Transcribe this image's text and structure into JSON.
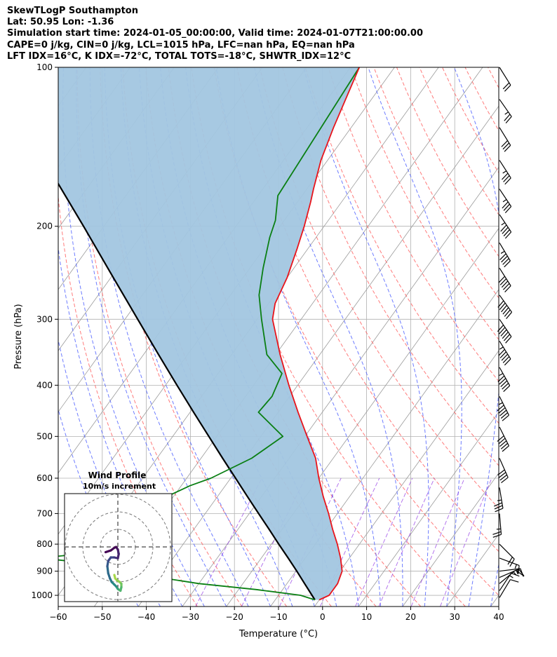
{
  "header": {
    "lines": [
      "SkewTLogP Southampton",
      "Lat: 50.95   Lon: -1.36",
      "Simulation start time: 2024-01-05_00:00:00, Valid time: 2024-01-07T21:00:00.00",
      "CAPE=0 j/kg, CIN=0 j/kg, LCL=1015 hPa, LFC=nan hPa, EQ=nan hPa",
      "LFT IDX=16°C, K IDX=-72°C, TOTAL TOTS=-18°C, SHWTR_IDX=12°C"
    ]
  },
  "colors": {
    "temperature": "#e8141b",
    "dewpoint": "#0a7f13",
    "parcel": "#000000",
    "shade": "#a2c6e0",
    "dry_adiabat": "#ff5a5a",
    "moist_adiabat": "#4a5cff",
    "mixing_ratio": "#8a2be2",
    "isotherm": "#9a9a9a"
  },
  "chart_data": {
    "type": "line",
    "title": "",
    "xlabel": "Temperature (°C)",
    "ylabel": "Pressure (hPa)",
    "xlim": [
      -60,
      40
    ],
    "ylim": [
      1050,
      100
    ],
    "y_scale": "log",
    "skew": "skewT",
    "x_ticks": [
      "−60",
      "−50",
      "−40",
      "−30",
      "−20",
      "−10",
      "0",
      "10",
      "20",
      "30",
      "40"
    ],
    "x_tick_values": [
      -60,
      -50,
      -40,
      -30,
      -20,
      -10,
      0,
      10,
      20,
      30,
      40
    ],
    "y_ticks": [
      "100",
      "200",
      "300",
      "400",
      "500",
      "600",
      "700",
      "800",
      "900",
      "1000"
    ],
    "y_tick_values": [
      100,
      200,
      300,
      400,
      500,
      600,
      700,
      800,
      900,
      1000
    ],
    "grid": true,
    "series": [
      {
        "key": "temperature",
        "pressure": [
          1020,
          1000,
          950,
          900,
          850,
          800,
          750,
          700,
          650,
          600,
          550,
          500,
          450,
          400,
          350,
          300,
          280,
          250,
          220,
          200,
          180,
          170,
          150,
          130,
          100
        ],
        "temp": [
          0.0,
          1.5,
          1.5,
          0.5,
          -2.0,
          -5.0,
          -8.5,
          -12.0,
          -16.0,
          -20.0,
          -24.0,
          -29.5,
          -35.5,
          -42.0,
          -49.0,
          -56.5,
          -58.5,
          -60.0,
          -62.5,
          -64.5,
          -67.0,
          -68.5,
          -71.5,
          -74.0,
          -78.0
        ]
      },
      {
        "key": "dewpoint",
        "pressure": [
          1020,
          1000,
          975,
          950,
          925,
          900,
          875,
          850,
          800,
          750,
          700,
          650,
          620,
          600,
          550,
          500,
          450,
          420,
          380,
          350,
          300,
          270,
          240,
          210,
          195,
          175,
          100
        ],
        "temp": [
          -1.0,
          -5.0,
          -16.0,
          -30.0,
          -40.0,
          -48.0,
          -55.0,
          -70.0,
          -43.0,
          -46.0,
          -49.0,
          -51.5,
          -48.0,
          -44.5,
          -38.5,
          -35.0,
          -44.5,
          -44.0,
          -45.5,
          -52.0,
          -59.0,
          -63.5,
          -67.0,
          -70.5,
          -72.0,
          -75.5,
          -78.0
        ]
      },
      {
        "key": "parcel",
        "pressure": [
          1020,
          950,
          900,
          850,
          800,
          750,
          700,
          650,
          600,
          550,
          500,
          450,
          400,
          350,
          300,
          250,
          200,
          150,
          100
        ],
        "temp": [
          -1.0,
          -6.0,
          -9.8,
          -13.9,
          -18.3,
          -22.9,
          -27.9,
          -33.2,
          -38.9,
          -45.1,
          -51.8,
          -59.2,
          -67.4,
          -76.6,
          -87.1,
          -99.5,
          -114.6,
          -134.3,
          -162.6
        ]
      }
    ],
    "shaded_region": "between temperature and parcel",
    "wind_barbs": [
      {
        "p": 1010,
        "u": 3,
        "v": 5
      },
      {
        "p": 980,
        "u": 4,
        "v": 6
      },
      {
        "p": 950,
        "u": 6,
        "v": 5
      },
      {
        "p": 925,
        "u": 7,
        "v": 3
      },
      {
        "p": 900,
        "u": 8,
        "v": 1
      },
      {
        "p": 850,
        "u": 8,
        "v": -3
      },
      {
        "p": 800,
        "u": 7,
        "v": -7
      },
      {
        "p": 700,
        "u": 1,
        "v": -12
      },
      {
        "p": 625,
        "u": 3,
        "v": -18
      },
      {
        "p": 550,
        "u": 8,
        "v": -18
      },
      {
        "p": 480,
        "u": 11,
        "v": -22
      },
      {
        "p": 420,
        "u": 12,
        "v": -24
      },
      {
        "p": 370,
        "u": 14,
        "v": -25
      },
      {
        "p": 330,
        "u": 15,
        "v": -24
      },
      {
        "p": 300,
        "u": 17,
        "v": -25
      },
      {
        "p": 270,
        "u": 18,
        "v": -25
      },
      {
        "p": 240,
        "u": 14,
        "v": -22
      },
      {
        "p": 215,
        "u": 12,
        "v": -20
      },
      {
        "p": 190,
        "u": 12,
        "v": -18
      },
      {
        "p": 170,
        "u": 10,
        "v": -15
      },
      {
        "p": 150,
        "u": 9,
        "v": -14
      },
      {
        "p": 130,
        "u": 8,
        "v": -13
      },
      {
        "p": 115,
        "u": 7,
        "v": -10
      },
      {
        "p": 100,
        "u": 5,
        "v": -8
      }
    ],
    "hodograph": {
      "title": "Wind Profile",
      "subtitle": "10m/s increment",
      "rings": [
        10,
        20,
        30
      ],
      "u": [
        -2,
        -1.5,
        -0.5,
        1,
        2,
        2,
        1.5,
        0,
        -1,
        -2,
        -3.5,
        -4.5,
        -5.5,
        -6,
        -5.5,
        -4,
        -2,
        0,
        0.5,
        0,
        -1,
        -2,
        -4,
        -7
      ],
      "v": [
        -16,
        -18,
        -19,
        -20,
        -21,
        -23,
        -25,
        -24,
        -22.5,
        -21.5,
        -20,
        -18,
        -15,
        -11,
        -8,
        -6,
        -6,
        -6.5,
        -4,
        -1.5,
        0,
        -0.5,
        -2,
        -3
      ]
    }
  }
}
